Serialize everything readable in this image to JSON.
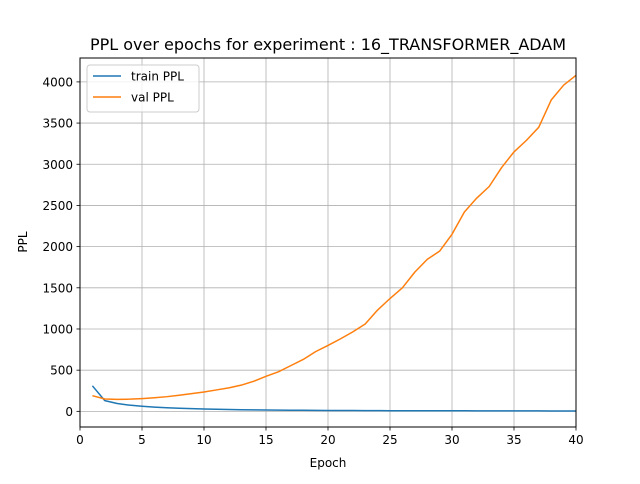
{
  "chart_data": {
    "type": "line",
    "title": "PPL over epochs for experiment : 16_TRANSFORMER_ADAM",
    "xlabel": "Epoch",
    "ylabel": "PPL",
    "xlim": [
      0,
      40
    ],
    "ylim": [
      -190,
      4290
    ],
    "xticks": [
      0,
      5,
      10,
      15,
      20,
      25,
      30,
      35,
      40
    ],
    "yticks": [
      0,
      500,
      1000,
      1500,
      2000,
      2500,
      3000,
      3500,
      4000
    ],
    "grid": true,
    "legend_position": "upper-left",
    "x": [
      1,
      2,
      3,
      4,
      5,
      6,
      7,
      8,
      9,
      10,
      11,
      12,
      13,
      14,
      15,
      16,
      17,
      18,
      19,
      20,
      21,
      22,
      23,
      24,
      25,
      26,
      27,
      28,
      29,
      30,
      31,
      32,
      33,
      34,
      35,
      36,
      37,
      38,
      39,
      40
    ],
    "series": [
      {
        "name": "train PPL",
        "color": "#1f77b4",
        "values": [
          310,
          130,
          95,
          75,
          62,
          52,
          44,
          38,
          33,
          29,
          25,
          22,
          20,
          18,
          16,
          15,
          14,
          13,
          12,
          11,
          10,
          10,
          9,
          9,
          8,
          8,
          8,
          7,
          7,
          7,
          7,
          6,
          6,
          6,
          6,
          6,
          6,
          5,
          5,
          5
        ]
      },
      {
        "name": "val PPL",
        "color": "#ff7f0e",
        "values": [
          190,
          150,
          145,
          148,
          155,
          165,
          178,
          195,
          215,
          235,
          260,
          285,
          318,
          365,
          425,
          480,
          555,
          630,
          725,
          800,
          880,
          965,
          1060,
          1230,
          1370,
          1500,
          1690,
          1845,
          1945,
          2150,
          2420,
          2590,
          2730,
          2960,
          3150,
          3290,
          3450,
          3780,
          3960,
          4080
        ]
      }
    ]
  }
}
